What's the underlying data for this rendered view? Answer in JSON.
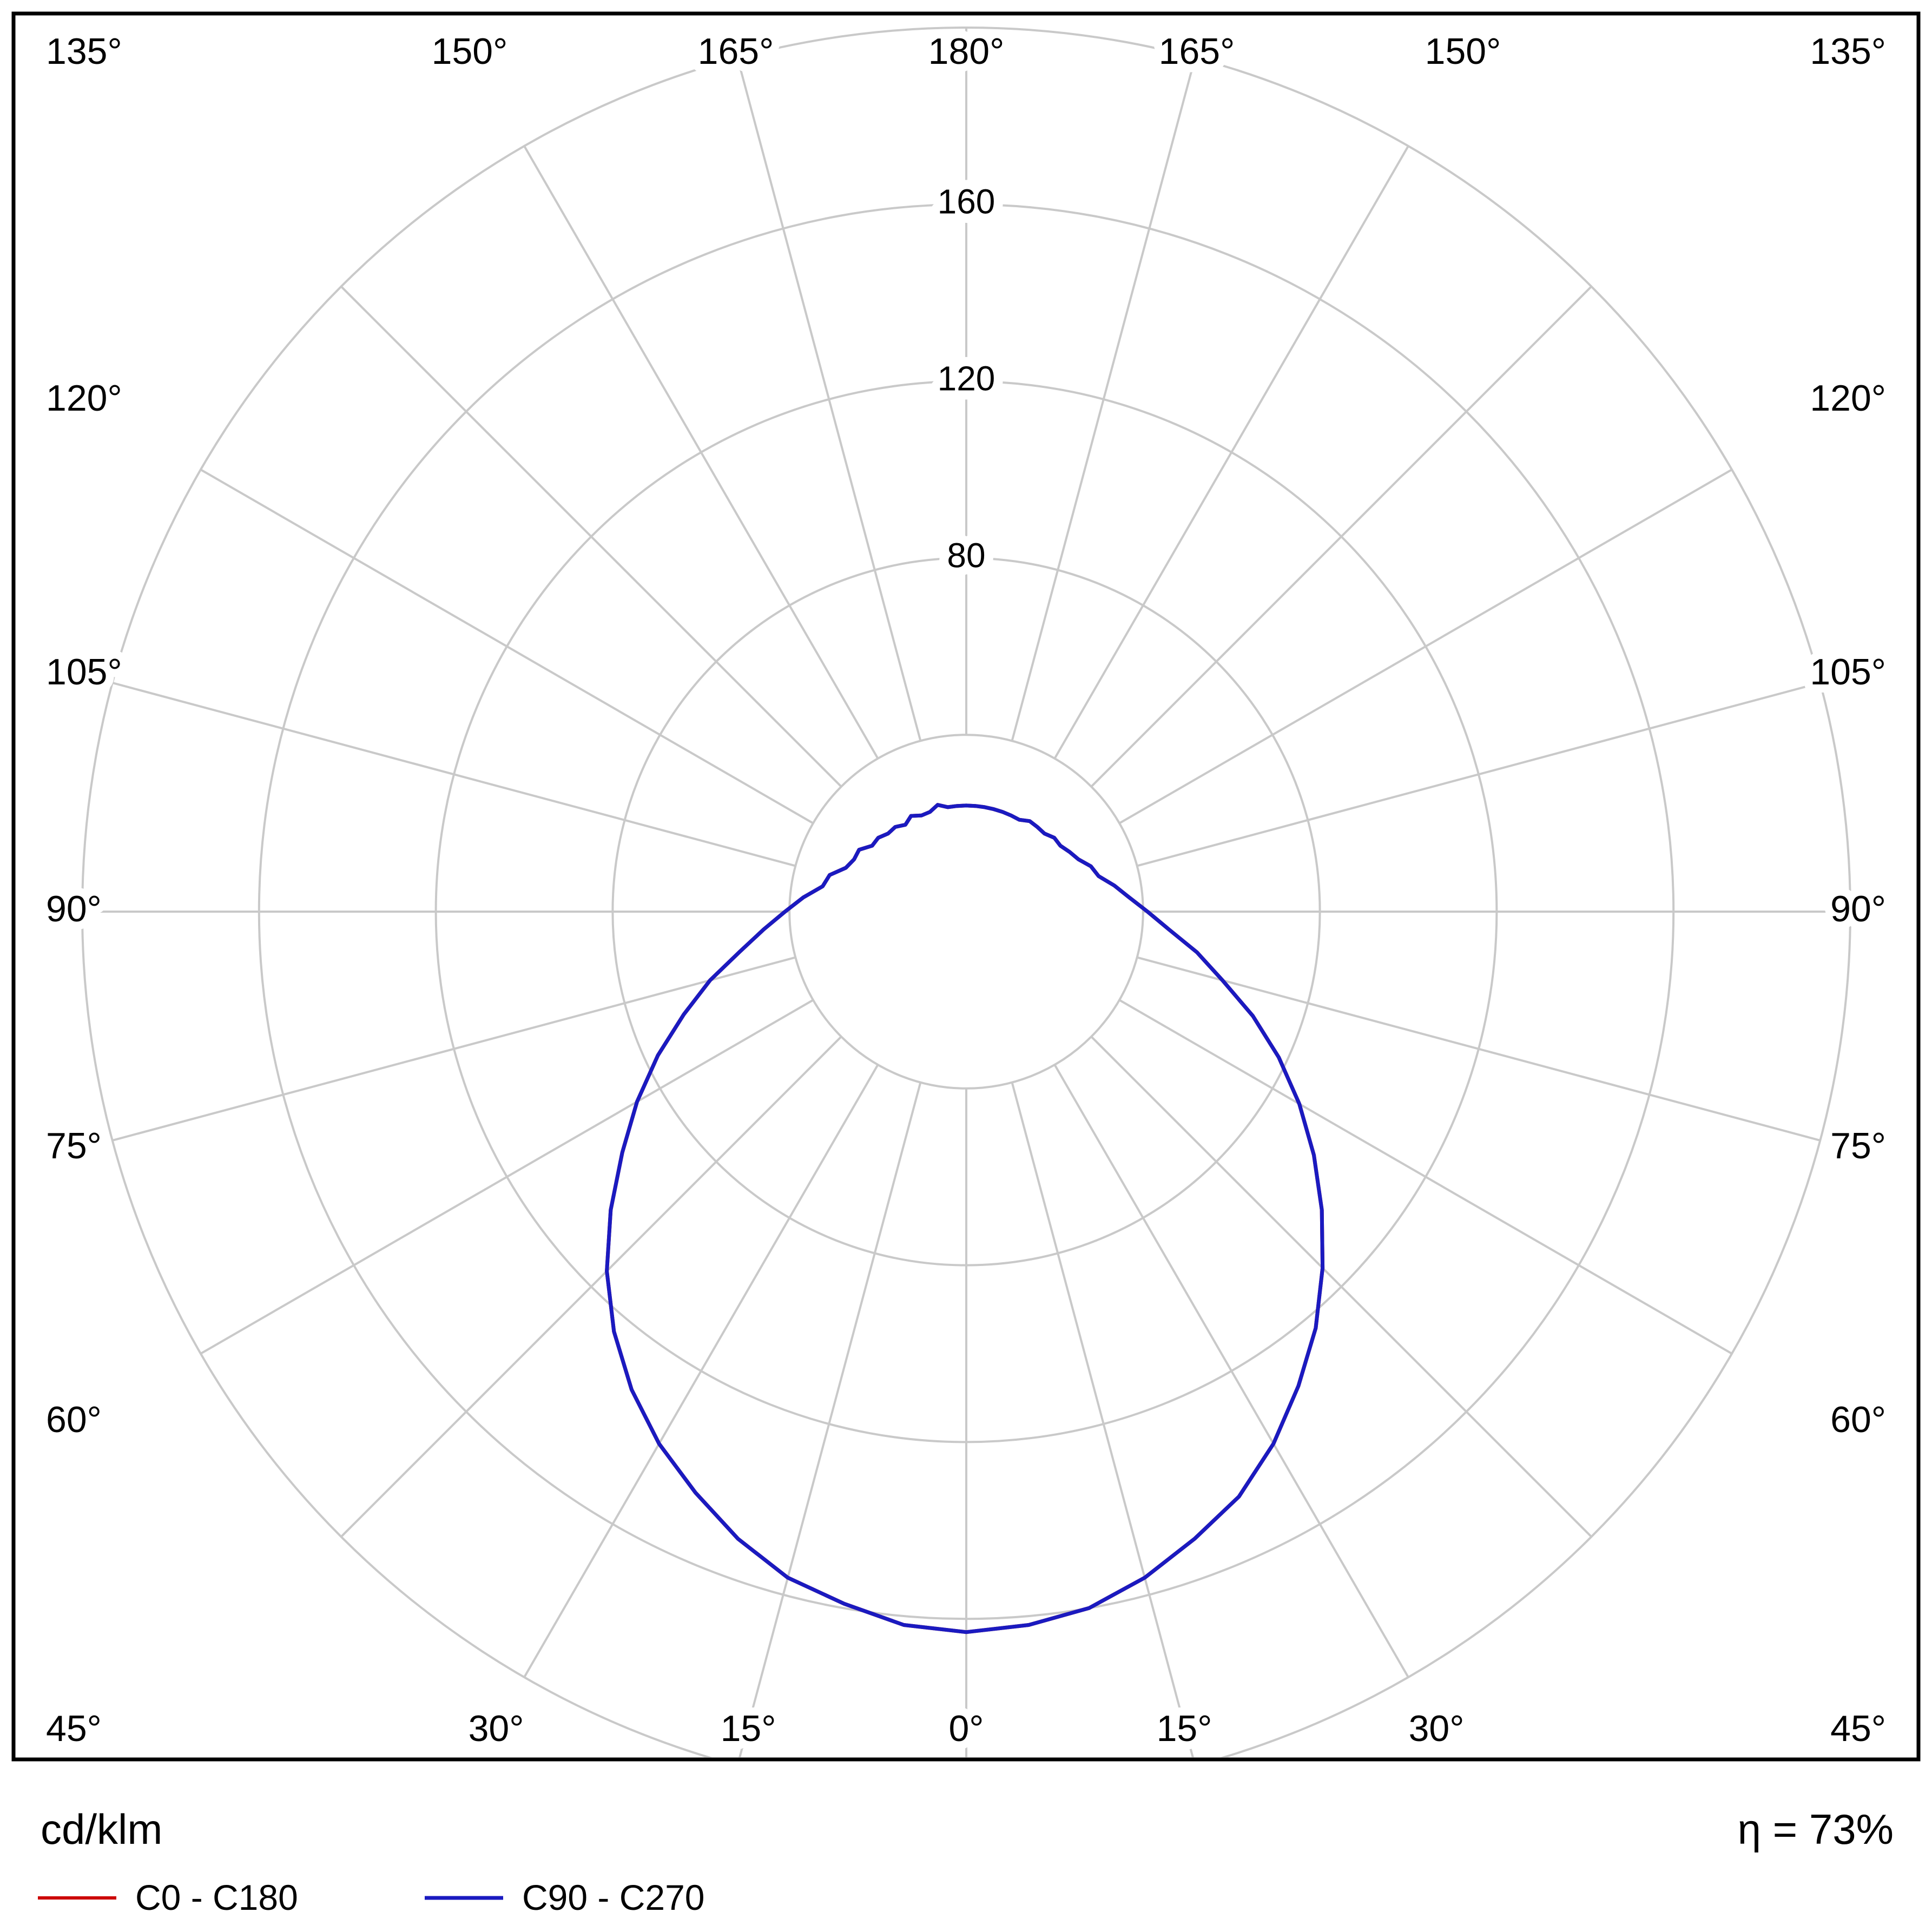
{
  "chart_data": {
    "type": "line",
    "subtype": "polar-photometric-distribution",
    "unit_label": "cd/klm",
    "efficiency": "η = 73%",
    "grid": {
      "color": "#c9c9c9",
      "ring_values": [
        40,
        80,
        120,
        160,
        200
      ],
      "ring_labels": [
        "80",
        "120",
        "160"
      ],
      "ring_label_values": [
        80,
        120,
        160
      ],
      "angle_step_deg": 15,
      "max_value": 200
    },
    "angle_labels": [
      "0°",
      "15°",
      "30°",
      "45°",
      "60°",
      "75°",
      "90°",
      "105°",
      "120°",
      "135°",
      "150°",
      "165°",
      "180°"
    ],
    "legend": [
      {
        "label": "C0 - C180",
        "color": "#cc0000"
      },
      {
        "label": "C90 - C270",
        "color": "#1a1ac0"
      }
    ],
    "gamma_deg": [
      0,
      5,
      10,
      15,
      20,
      25,
      30,
      35,
      40,
      45,
      50,
      55,
      60,
      65,
      70,
      75,
      80,
      85,
      90,
      95,
      100,
      105,
      110,
      115,
      120,
      125,
      130,
      135,
      140,
      145,
      150,
      155,
      160,
      165,
      170,
      175,
      180
    ],
    "series": [
      {
        "name": "C0 - C180",
        "color": "#cc0000",
        "right": [
          163,
          162,
          160,
          156,
          151,
          146,
          139,
          131,
          123,
          114,
          105,
          96,
          87,
          78,
          69,
          60,
          53,
          46,
          41,
          37,
          34,
          31,
          30,
          28,
          27,
          26,
          26,
          25,
          25,
          25,
          24,
          24,
          24,
          24,
          24,
          24,
          24
        ],
        "left": [
          163,
          162,
          159,
          156,
          151,
          145,
          139,
          132,
          124,
          115,
          105,
          95,
          86,
          77,
          68,
          60,
          52,
          46,
          41,
          37,
          33,
          32,
          29,
          28,
          28,
          26,
          26,
          25,
          25,
          24,
          25,
          24,
          24,
          25,
          24,
          24,
          24
        ]
      },
      {
        "name": "C90 - C270",
        "color": "#1a1ac0",
        "right": [
          163,
          162,
          160,
          156,
          151,
          146,
          139,
          131,
          123,
          114,
          105,
          96,
          87,
          78,
          69,
          60,
          53,
          46,
          41,
          37,
          34,
          31,
          30,
          28,
          27,
          26,
          26,
          25,
          25,
          25,
          24,
          24,
          24,
          24,
          24,
          24,
          24
        ],
        "left": [
          163,
          162,
          159,
          156,
          151,
          145,
          139,
          132,
          124,
          115,
          105,
          95,
          86,
          77,
          68,
          60,
          52,
          46,
          41,
          37,
          33,
          32,
          29,
          28,
          28,
          26,
          26,
          25,
          25,
          24,
          25,
          24,
          24,
          25,
          24,
          24,
          24
        ]
      }
    ]
  }
}
